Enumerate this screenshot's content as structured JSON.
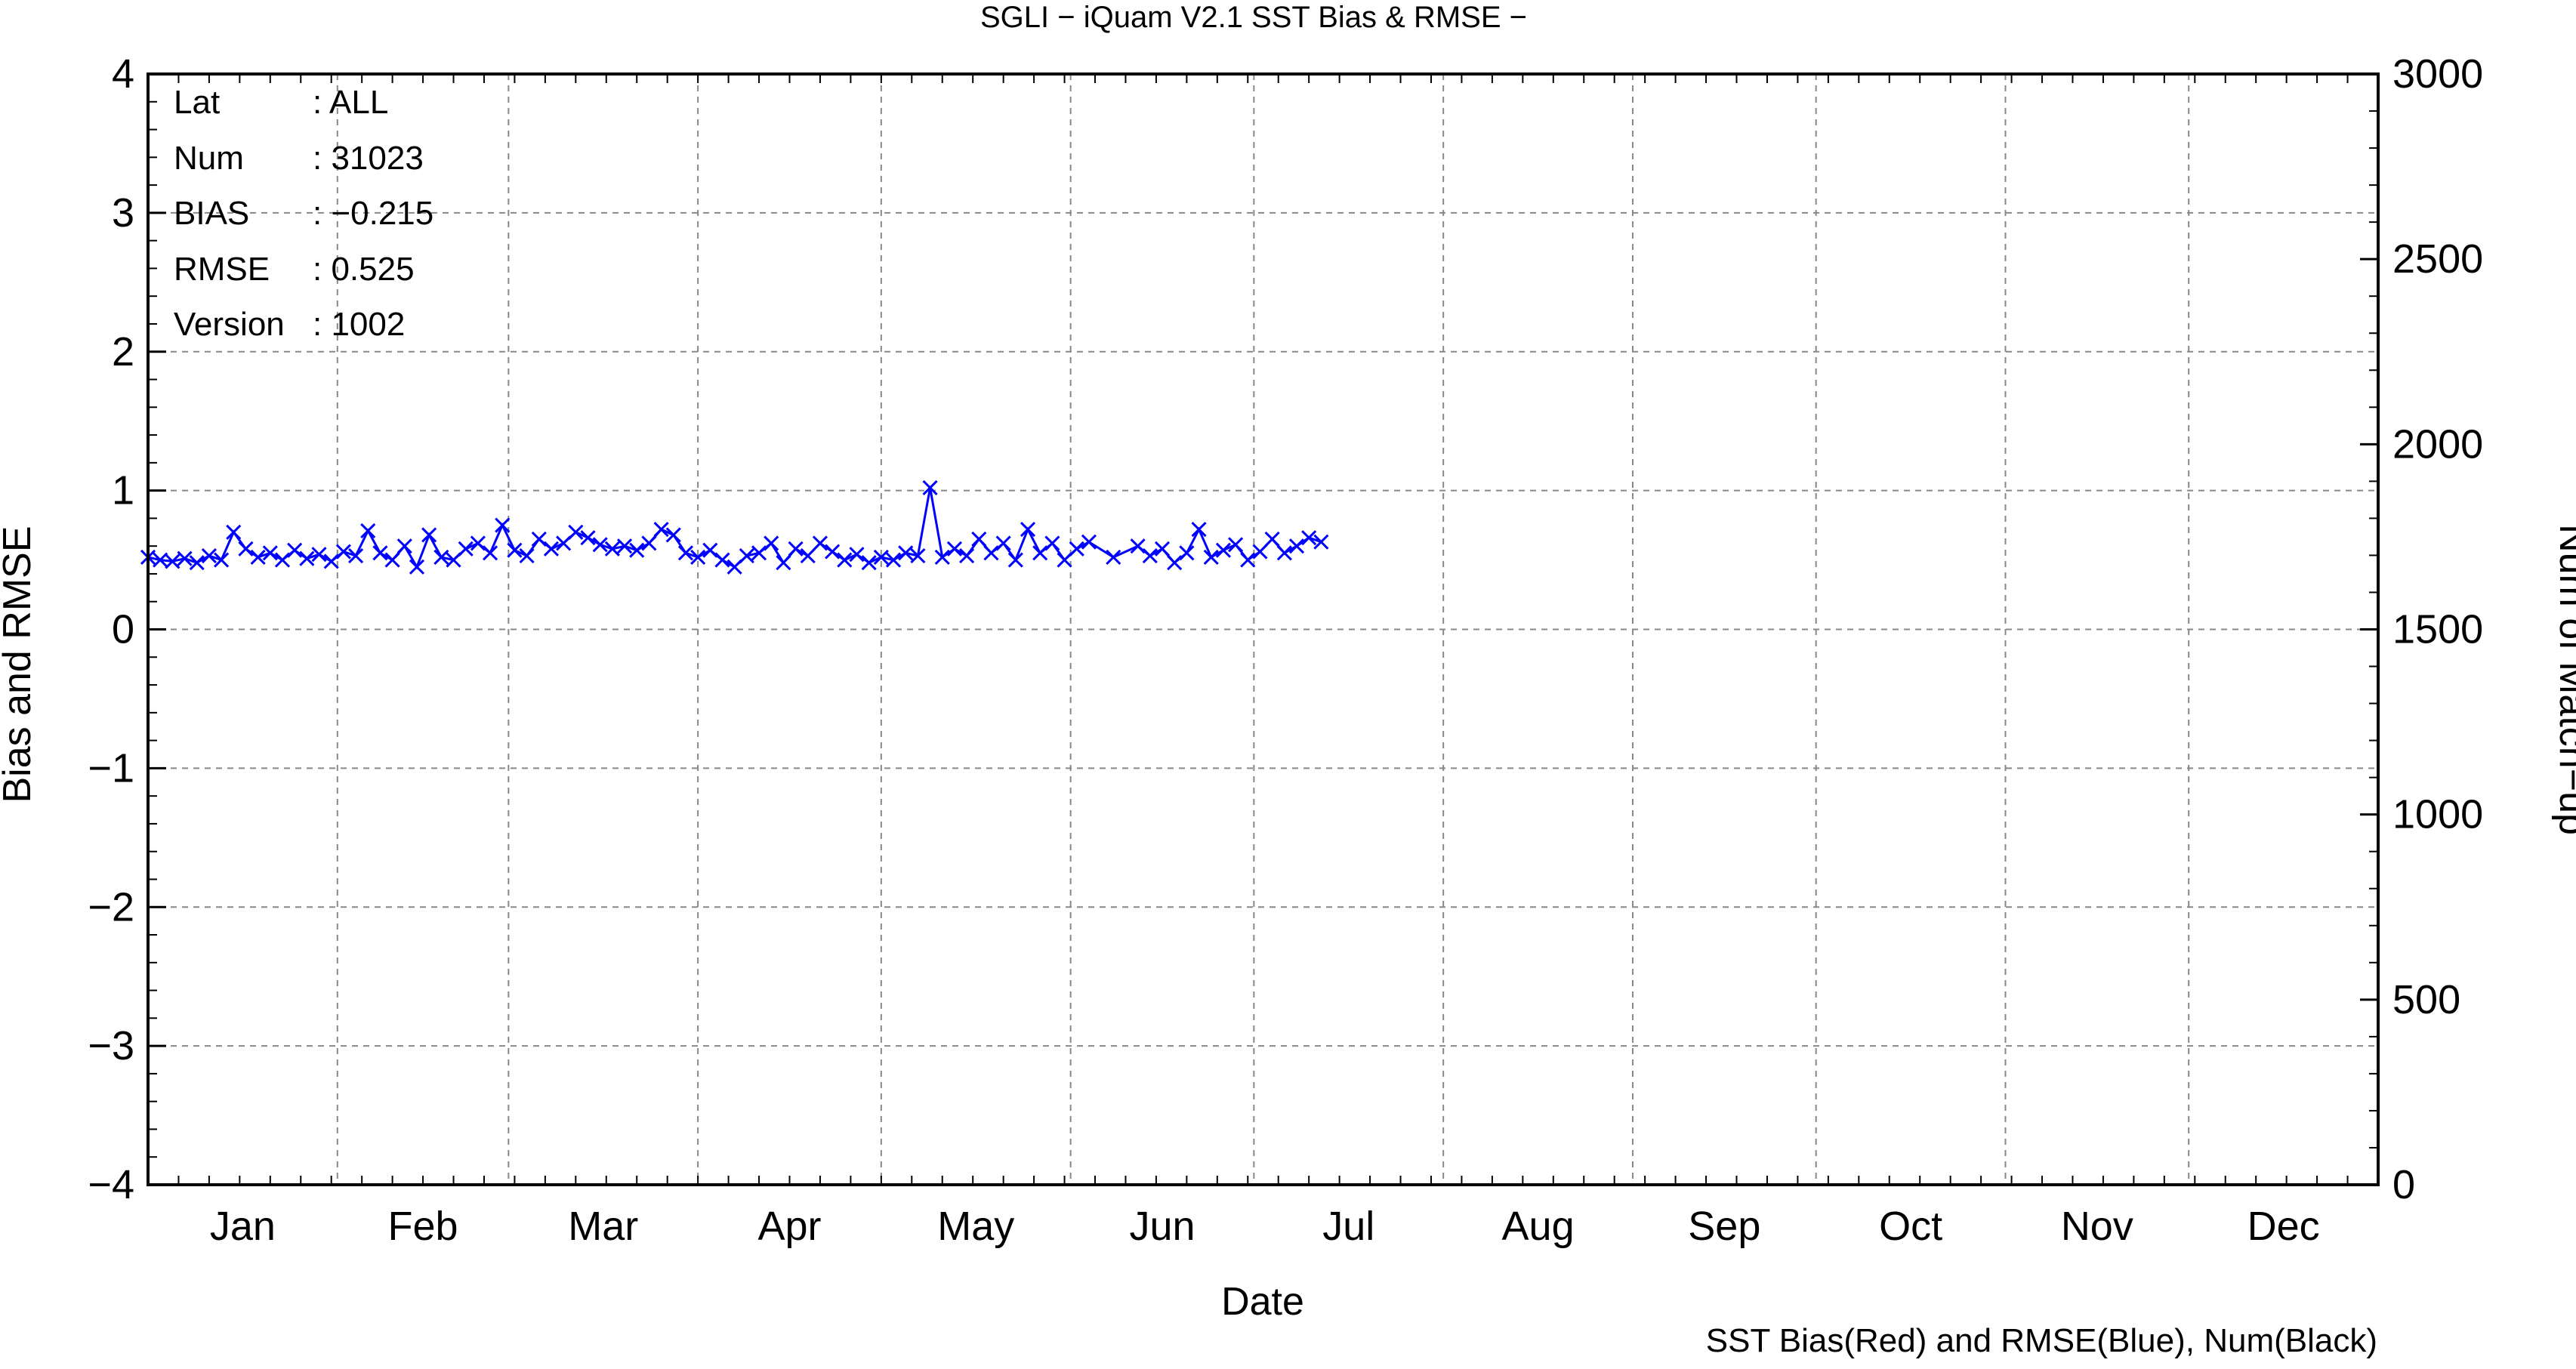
{
  "chart_data": {
    "type": "line",
    "title": "SGLI − iQuam V2.1 SST Bias & RMSE  −",
    "xlabel": "Date",
    "ylabel_left": "Bias and RMSE",
    "ylabel_right": "Num of Match−up",
    "footer": "SST Bias(Red) and RMSE(Blue), Num(Black)",
    "months": [
      "Jan",
      "Feb",
      "Mar",
      "Apr",
      "May",
      "Jun",
      "Jul",
      "Aug",
      "Sep",
      "Oct",
      "Nov",
      "Dec"
    ],
    "xlim_days": [
      1,
      366
    ],
    "ylim_left": [
      -4,
      4
    ],
    "ylim_right": [
      0,
      3000
    ],
    "left_ticks": [
      "4",
      "3",
      "2",
      "1",
      "0",
      "−1",
      "−2",
      "−3",
      "−4"
    ],
    "right_ticks": [
      "3000",
      "2500",
      "2000",
      "1500",
      "1000",
      "500",
      "0"
    ],
    "grid": true,
    "stats": [
      {
        "key": "Lat",
        "value": ": ALL"
      },
      {
        "key": "Num",
        "value": ": 31023"
      },
      {
        "key": "BIAS",
        "value": ": −0.215"
      },
      {
        "key": "RMSE",
        "value": ": 0.525"
      },
      {
        "key": "Version",
        "value": ": 1002"
      }
    ],
    "colors": {
      "bias": "#ff0000",
      "rmse": "#0000ff",
      "num": "#000000",
      "grid": "#888888"
    },
    "series": [
      {
        "key": "rmse",
        "x": [
          1,
          3,
          5,
          7,
          9,
          11,
          13,
          15,
          17,
          19,
          21,
          23,
          25,
          27,
          29,
          31,
          33,
          35,
          37,
          39,
          41,
          43,
          45,
          47,
          49,
          51,
          53,
          55,
          57,
          59,
          61,
          63,
          65,
          67,
          69,
          71,
          73,
          75,
          77,
          79,
          81,
          83,
          85,
          87,
          89,
          91,
          93,
          95,
          97,
          99,
          101,
          103,
          105,
          107,
          109,
          111,
          113,
          115,
          117,
          119,
          121,
          123,
          125,
          127,
          129,
          131,
          133,
          135,
          137,
          139,
          141,
          143,
          145,
          147,
          149,
          151,
          153,
          155,
          159,
          163,
          165,
          167,
          169,
          171,
          173,
          175,
          177,
          179,
          181,
          183,
          185,
          187,
          189,
          191,
          193
        ],
        "y": [
          0.52,
          0.5,
          0.49,
          0.51,
          0.48,
          0.53,
          0.5,
          0.7,
          0.58,
          0.52,
          0.55,
          0.5,
          0.57,
          0.51,
          0.54,
          0.49,
          0.56,
          0.53,
          0.71,
          0.55,
          0.5,
          0.6,
          0.45,
          0.68,
          0.52,
          0.5,
          0.58,
          0.62,
          0.55,
          0.75,
          0.57,
          0.53,
          0.65,
          0.58,
          0.62,
          0.7,
          0.66,
          0.61,
          0.58,
          0.6,
          0.57,
          0.62,
          0.72,
          0.68,
          0.55,
          0.52,
          0.57,
          0.5,
          0.45,
          0.53,
          0.55,
          0.62,
          0.48,
          0.58,
          0.53,
          0.62,
          0.56,
          0.5,
          0.54,
          0.48,
          0.52,
          0.5,
          0.55,
          0.53,
          1.02,
          0.52,
          0.58,
          0.53,
          0.65,
          0.55,
          0.62,
          0.5,
          0.72,
          0.55,
          0.62,
          0.5,
          0.58,
          0.63,
          0.52,
          0.6,
          0.53,
          0.58,
          0.48,
          0.55,
          0.72,
          0.52,
          0.57,
          0.61,
          0.5,
          0.56,
          0.65,
          0.55,
          0.6,
          0.66,
          0.63
        ],
        "x2": [
          175,
          183
        ],
        "y2": [
          0.63,
          0.52
        ]
      }
    ]
  }
}
